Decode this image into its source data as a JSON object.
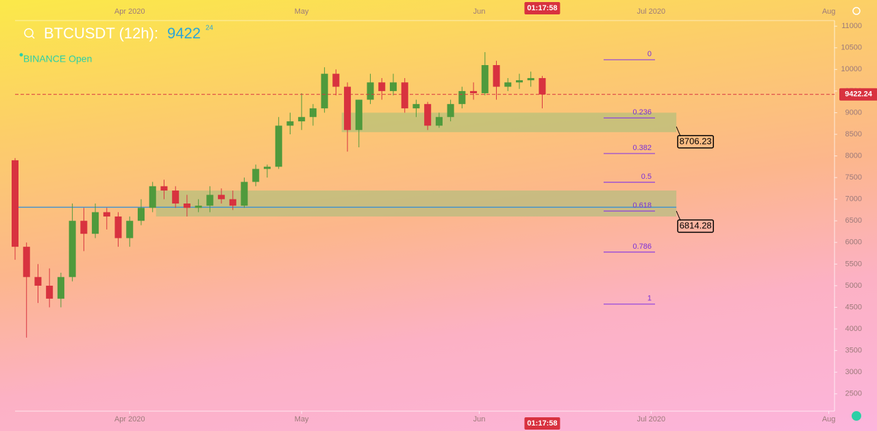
{
  "chart_data": {
    "type": "candlestick",
    "symbol": "BTCUSDT (12h):",
    "last_price_main": "9422",
    "last_price_decimals": "24",
    "exchange_status": "BINANCE Open",
    "countdown": "01:17:58",
    "last_price": 9422.24,
    "up_color": "#4f9a3c",
    "down_color": "#d8323f",
    "x": [
      0,
      2,
      4,
      6,
      8,
      10,
      12,
      14,
      16,
      18,
      20,
      22,
      24,
      26,
      28,
      30,
      32,
      34,
      36,
      38,
      40,
      42,
      44,
      46,
      48,
      50,
      52,
      54,
      56,
      58,
      60,
      62,
      64,
      66,
      68,
      70,
      72,
      74,
      76,
      78,
      80,
      82,
      84,
      86,
      88,
      90,
      92
    ],
    "open": [
      7900,
      5900,
      5200,
      5000,
      4700,
      5200,
      6500,
      6200,
      6700,
      6600,
      6100,
      6500,
      6800,
      7300,
      7200,
      6900,
      6800,
      6850,
      7100,
      7000,
      6850,
      7400,
      7700,
      7750,
      8700,
      8800,
      8900,
      9100,
      9900,
      9600,
      8600,
      9300,
      9700,
      9500,
      9700,
      9100,
      9200,
      8700,
      8900,
      9200,
      9500,
      9450,
      10100,
      9600,
      9700,
      9750,
      9800
    ],
    "high": [
      7950,
      6000,
      5500,
      5400,
      5300,
      6900,
      6800,
      6900,
      6800,
      6700,
      6600,
      7000,
      7400,
      7450,
      7300,
      7100,
      7000,
      7300,
      7250,
      7200,
      7500,
      7800,
      7800,
      8900,
      9000,
      9450,
      9200,
      10050,
      10000,
      9700,
      9300,
      9900,
      9800,
      9900,
      9800,
      9300,
      9250,
      9000,
      9300,
      9600,
      9700,
      10400,
      10200,
      9800,
      9900,
      9950,
      9850
    ],
    "low": [
      5600,
      3800,
      4600,
      4500,
      4500,
      5100,
      5800,
      6100,
      6300,
      5900,
      5900,
      6400,
      6700,
      7000,
      6800,
      6600,
      6700,
      6700,
      6900,
      6750,
      6800,
      7300,
      7500,
      7700,
      8500,
      8600,
      8700,
      9000,
      9400,
      8100,
      8200,
      9200,
      9300,
      9400,
      9000,
      8900,
      8600,
      8650,
      8800,
      9100,
      9300,
      9400,
      9300,
      9500,
      9550,
      9600,
      9100
    ],
    "close": [
      5900,
      5200,
      5000,
      4700,
      5200,
      6500,
      6200,
      6700,
      6600,
      6100,
      6500,
      6800,
      7300,
      7200,
      6900,
      6800,
      6850,
      7100,
      7000,
      6850,
      7400,
      7700,
      7750,
      8700,
      8800,
      8900,
      9100,
      9900,
      9600,
      8600,
      9300,
      9700,
      9500,
      9700,
      9100,
      9200,
      8700,
      8900,
      9200,
      9500,
      9450,
      10100,
      9600,
      9700,
      9750,
      9800,
      9422.24
    ],
    "xlim": [
      0,
      143
    ],
    "xticks": [
      {
        "value": 20,
        "label": "Apr 2020"
      },
      {
        "value": 50,
        "label": "May"
      },
      {
        "value": 81,
        "label": "Jun"
      },
      {
        "value": 111,
        "label": "Jul 2020"
      },
      {
        "value": 142,
        "label": "Aug"
      }
    ],
    "ylim": [
      2100,
      11130
    ],
    "yticks": [
      2500,
      3000,
      3500,
      4000,
      4500,
      5000,
      5500,
      6000,
      6500,
      7000,
      7500,
      8000,
      8500,
      9000,
      9500,
      10000,
      10500,
      11000
    ],
    "fib_levels": [
      {
        "ratio": 0,
        "price": 10224
      },
      {
        "ratio": 0.236,
        "price": 8879
      },
      {
        "ratio": 0.382,
        "price": 8056
      },
      {
        "ratio": 0.5,
        "price": 7391
      },
      {
        "ratio": 0.618,
        "price": 6726
      },
      {
        "ratio": 0.786,
        "price": 5777
      },
      {
        "ratio": 1,
        "price": 4574
      }
    ],
    "zones": [
      {
        "x": [
          57,
          115.4
        ],
        "price": [
          8550,
          9000
        ],
        "level": 8706.23,
        "label": "8706.23"
      },
      {
        "x": [
          24.6,
          115.4
        ],
        "price": [
          6600,
          7200
        ],
        "level": 6814.28,
        "label": "6814.28"
      }
    ]
  }
}
